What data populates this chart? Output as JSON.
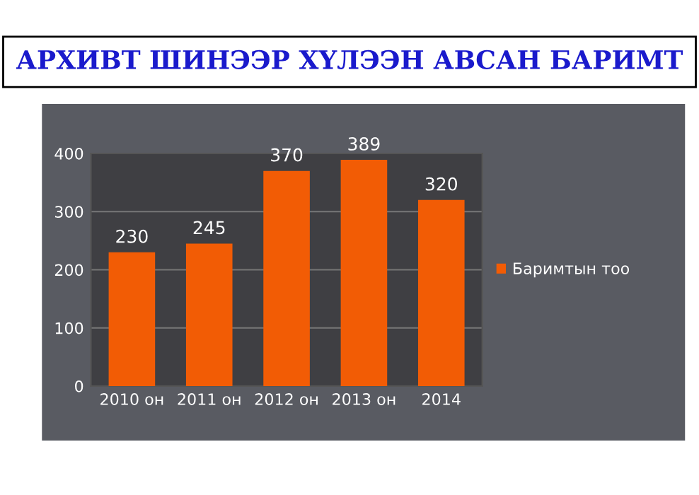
{
  "chart_data": {
    "type": "bar",
    "title": "АРХИВТ ШИНЭЭР ХҮЛЭЭН АВСАН БАРИМТ",
    "categories": [
      "2010 он",
      "2011 он",
      "2012 он",
      "2013 он",
      "2014"
    ],
    "series": [
      {
        "name": "Баримтын тоо",
        "color": "#f25c05",
        "values": [
          230,
          245,
          370,
          389,
          320
        ]
      }
    ],
    "ylim": [
      0,
      400
    ],
    "yticks": [
      0,
      100,
      200,
      300,
      400
    ],
    "grid": "y",
    "legend": "right",
    "data_labels": true
  }
}
